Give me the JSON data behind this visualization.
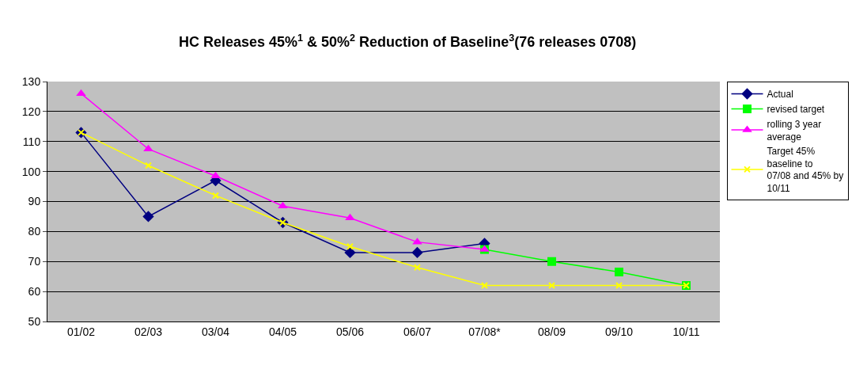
{
  "chart_data": {
    "type": "line",
    "title": "HC Releases 45%$^{1}$ & 50%$^{2}$ Reduction of Baseline$^{3}$(76 releases 0708)",
    "categories": [
      "01/02",
      "02/03",
      "03/04",
      "04/05",
      "05/06",
      "06/07",
      "07/08*",
      "08/09",
      "09/10",
      "10/11"
    ],
    "ylim": [
      50,
      130
    ],
    "yticks": [
      50,
      60,
      70,
      80,
      90,
      100,
      110,
      120,
      130
    ],
    "grid": "y",
    "legend": "right",
    "series": [
      {
        "name": "Actual",
        "color": "#000080",
        "marker": "diamond",
        "values": [
          113,
          85,
          97,
          83,
          73,
          73,
          76,
          null,
          null,
          null
        ]
      },
      {
        "name": "revised target",
        "color": "#00ff00",
        "marker": "square",
        "values": [
          null,
          null,
          null,
          null,
          null,
          null,
          74,
          70,
          66.5,
          62
        ]
      },
      {
        "name": "rolling 3 year average",
        "color": "#ff00ff",
        "marker": "triangle",
        "values": [
          126,
          107.5,
          98.5,
          88.5,
          84.5,
          76.5,
          74,
          null,
          null,
          null
        ]
      },
      {
        "name": "Target 45% baseline to 07/08 and 45% by 10/11",
        "color": "#ffff00",
        "marker": "cross",
        "values": [
          113,
          102,
          92,
          83,
          75,
          68,
          62,
          62,
          62,
          62
        ]
      }
    ]
  }
}
